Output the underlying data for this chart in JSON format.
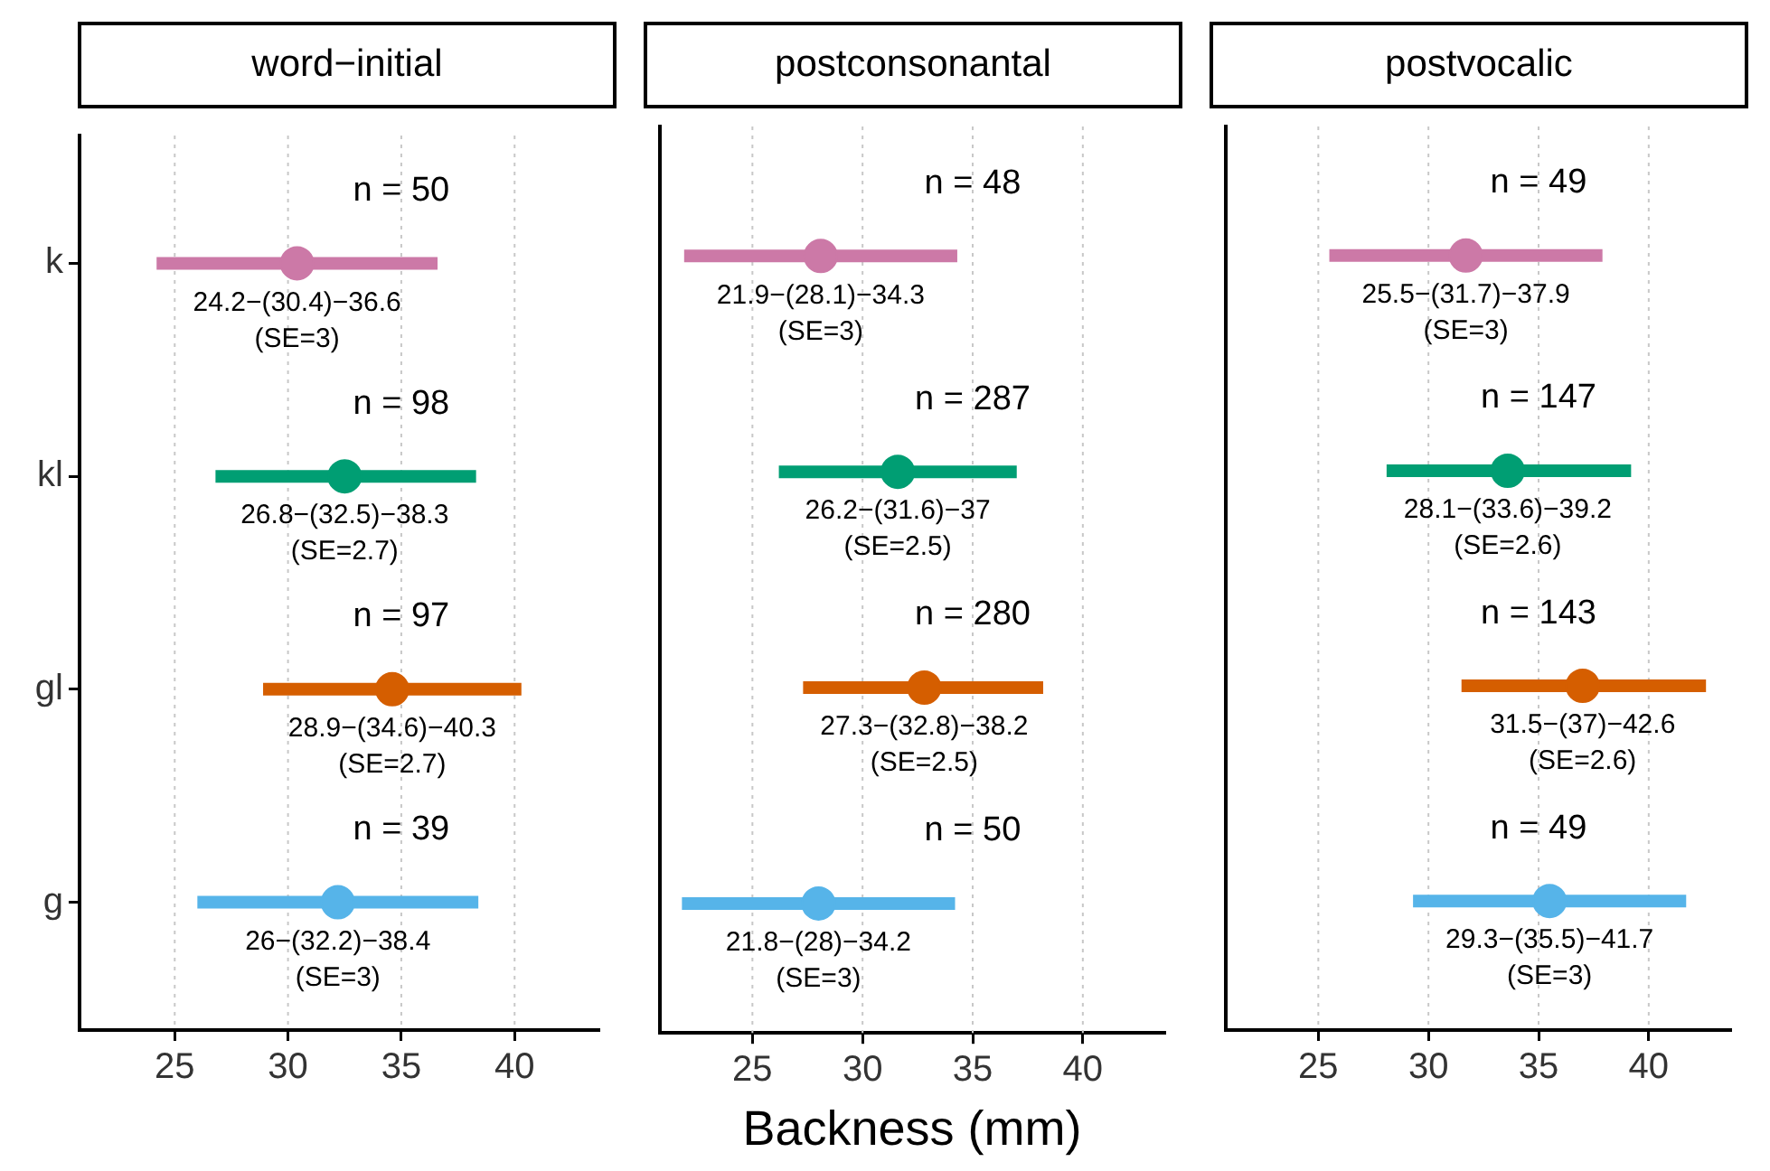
{
  "chart_data": [
    {
      "type": "scatter",
      "orientation": "horizontal",
      "title": "word−initial",
      "categories": [
        "k",
        "kl",
        "gl",
        "g"
      ],
      "values": [
        30.4,
        32.5,
        34.6,
        32.2
      ],
      "errors": [
        [
          24.2,
          36.6
        ],
        [
          26.8,
          38.3
        ],
        [
          28.9,
          40.3
        ],
        [
          26,
          38.4
        ]
      ],
      "colors": [
        "#cc79a7",
        "#009e73",
        "#d55e00",
        "#56b4e9"
      ],
      "value_labels": [
        "24.2−(30.4)−36.6\n(SE=3)",
        "26.8−(32.5)−38.3\n(SE=2.7)",
        "28.9−(34.6)−40.3\n(SE=2.7)",
        "26−(32.2)−38.4\n(SE=3)"
      ],
      "annotations": [
        "n = 50",
        "n = 98",
        "n = 97",
        "n = 39"
      ],
      "xlim": [
        20.8,
        43.7
      ],
      "xticks": [
        25,
        30,
        35,
        40
      ],
      "grid": "x",
      "marker": "circle",
      "legend": false
    },
    {
      "type": "scatter",
      "orientation": "horizontal",
      "title": "postconsonantal",
      "xlabel": "Backness (mm)",
      "categories": [
        null,
        null,
        null,
        null
      ],
      "values": [
        28.1,
        31.6,
        32.8,
        28
      ],
      "errors": [
        [
          21.9,
          34.3
        ],
        [
          26.2,
          37
        ],
        [
          27.3,
          38.2
        ],
        [
          21.8,
          34.2
        ]
      ],
      "colors": [
        "#cc79a7",
        "#009e73",
        "#d55e00",
        "#56b4e9"
      ],
      "value_labels": [
        "21.9−(28.1)−34.3\n(SE=3)",
        "26.2−(31.6)−37\n(SE=2.5)",
        "27.3−(32.8)−38.2\n(SE=2.5)",
        "21.8−(28)−34.2\n(SE=3)"
      ],
      "annotations": [
        "n = 48",
        "n = 287",
        "n = 280",
        "n = 50"
      ],
      "xlim": [
        20.8,
        43.7
      ],
      "xticks": [
        25,
        30,
        35,
        40
      ],
      "grid": "x",
      "marker": "circle",
      "legend": false,
      "tick_labels": "x"
    },
    {
      "type": "scatter",
      "orientation": "horizontal",
      "title": "postvocalic",
      "categories": [
        null,
        null,
        null,
        null
      ],
      "values": [
        31.7,
        33.6,
        37,
        35.5
      ],
      "errors": [
        [
          25.5,
          37.9
        ],
        [
          28.1,
          39.2
        ],
        [
          31.5,
          42.6
        ],
        [
          29.3,
          41.7
        ]
      ],
      "colors": [
        "#cc79a7",
        "#009e73",
        "#d55e00",
        "#56b4e9"
      ],
      "value_labels": [
        "25.5−(31.7)−37.9\n(SE=3)",
        "28.1−(33.6)−39.2\n(SE=2.6)",
        "31.5−(37)−42.6\n(SE=2.6)",
        "29.3−(35.5)−41.7\n(SE=3)"
      ],
      "annotations": [
        "n = 49",
        "n = 147",
        "n = 143",
        "n = 49"
      ],
      "xlim": [
        20.8,
        43.7
      ],
      "xticks": [
        25,
        30,
        35,
        40
      ],
      "grid": "x",
      "marker": "circle",
      "legend": false,
      "tick_labels": "x"
    }
  ]
}
